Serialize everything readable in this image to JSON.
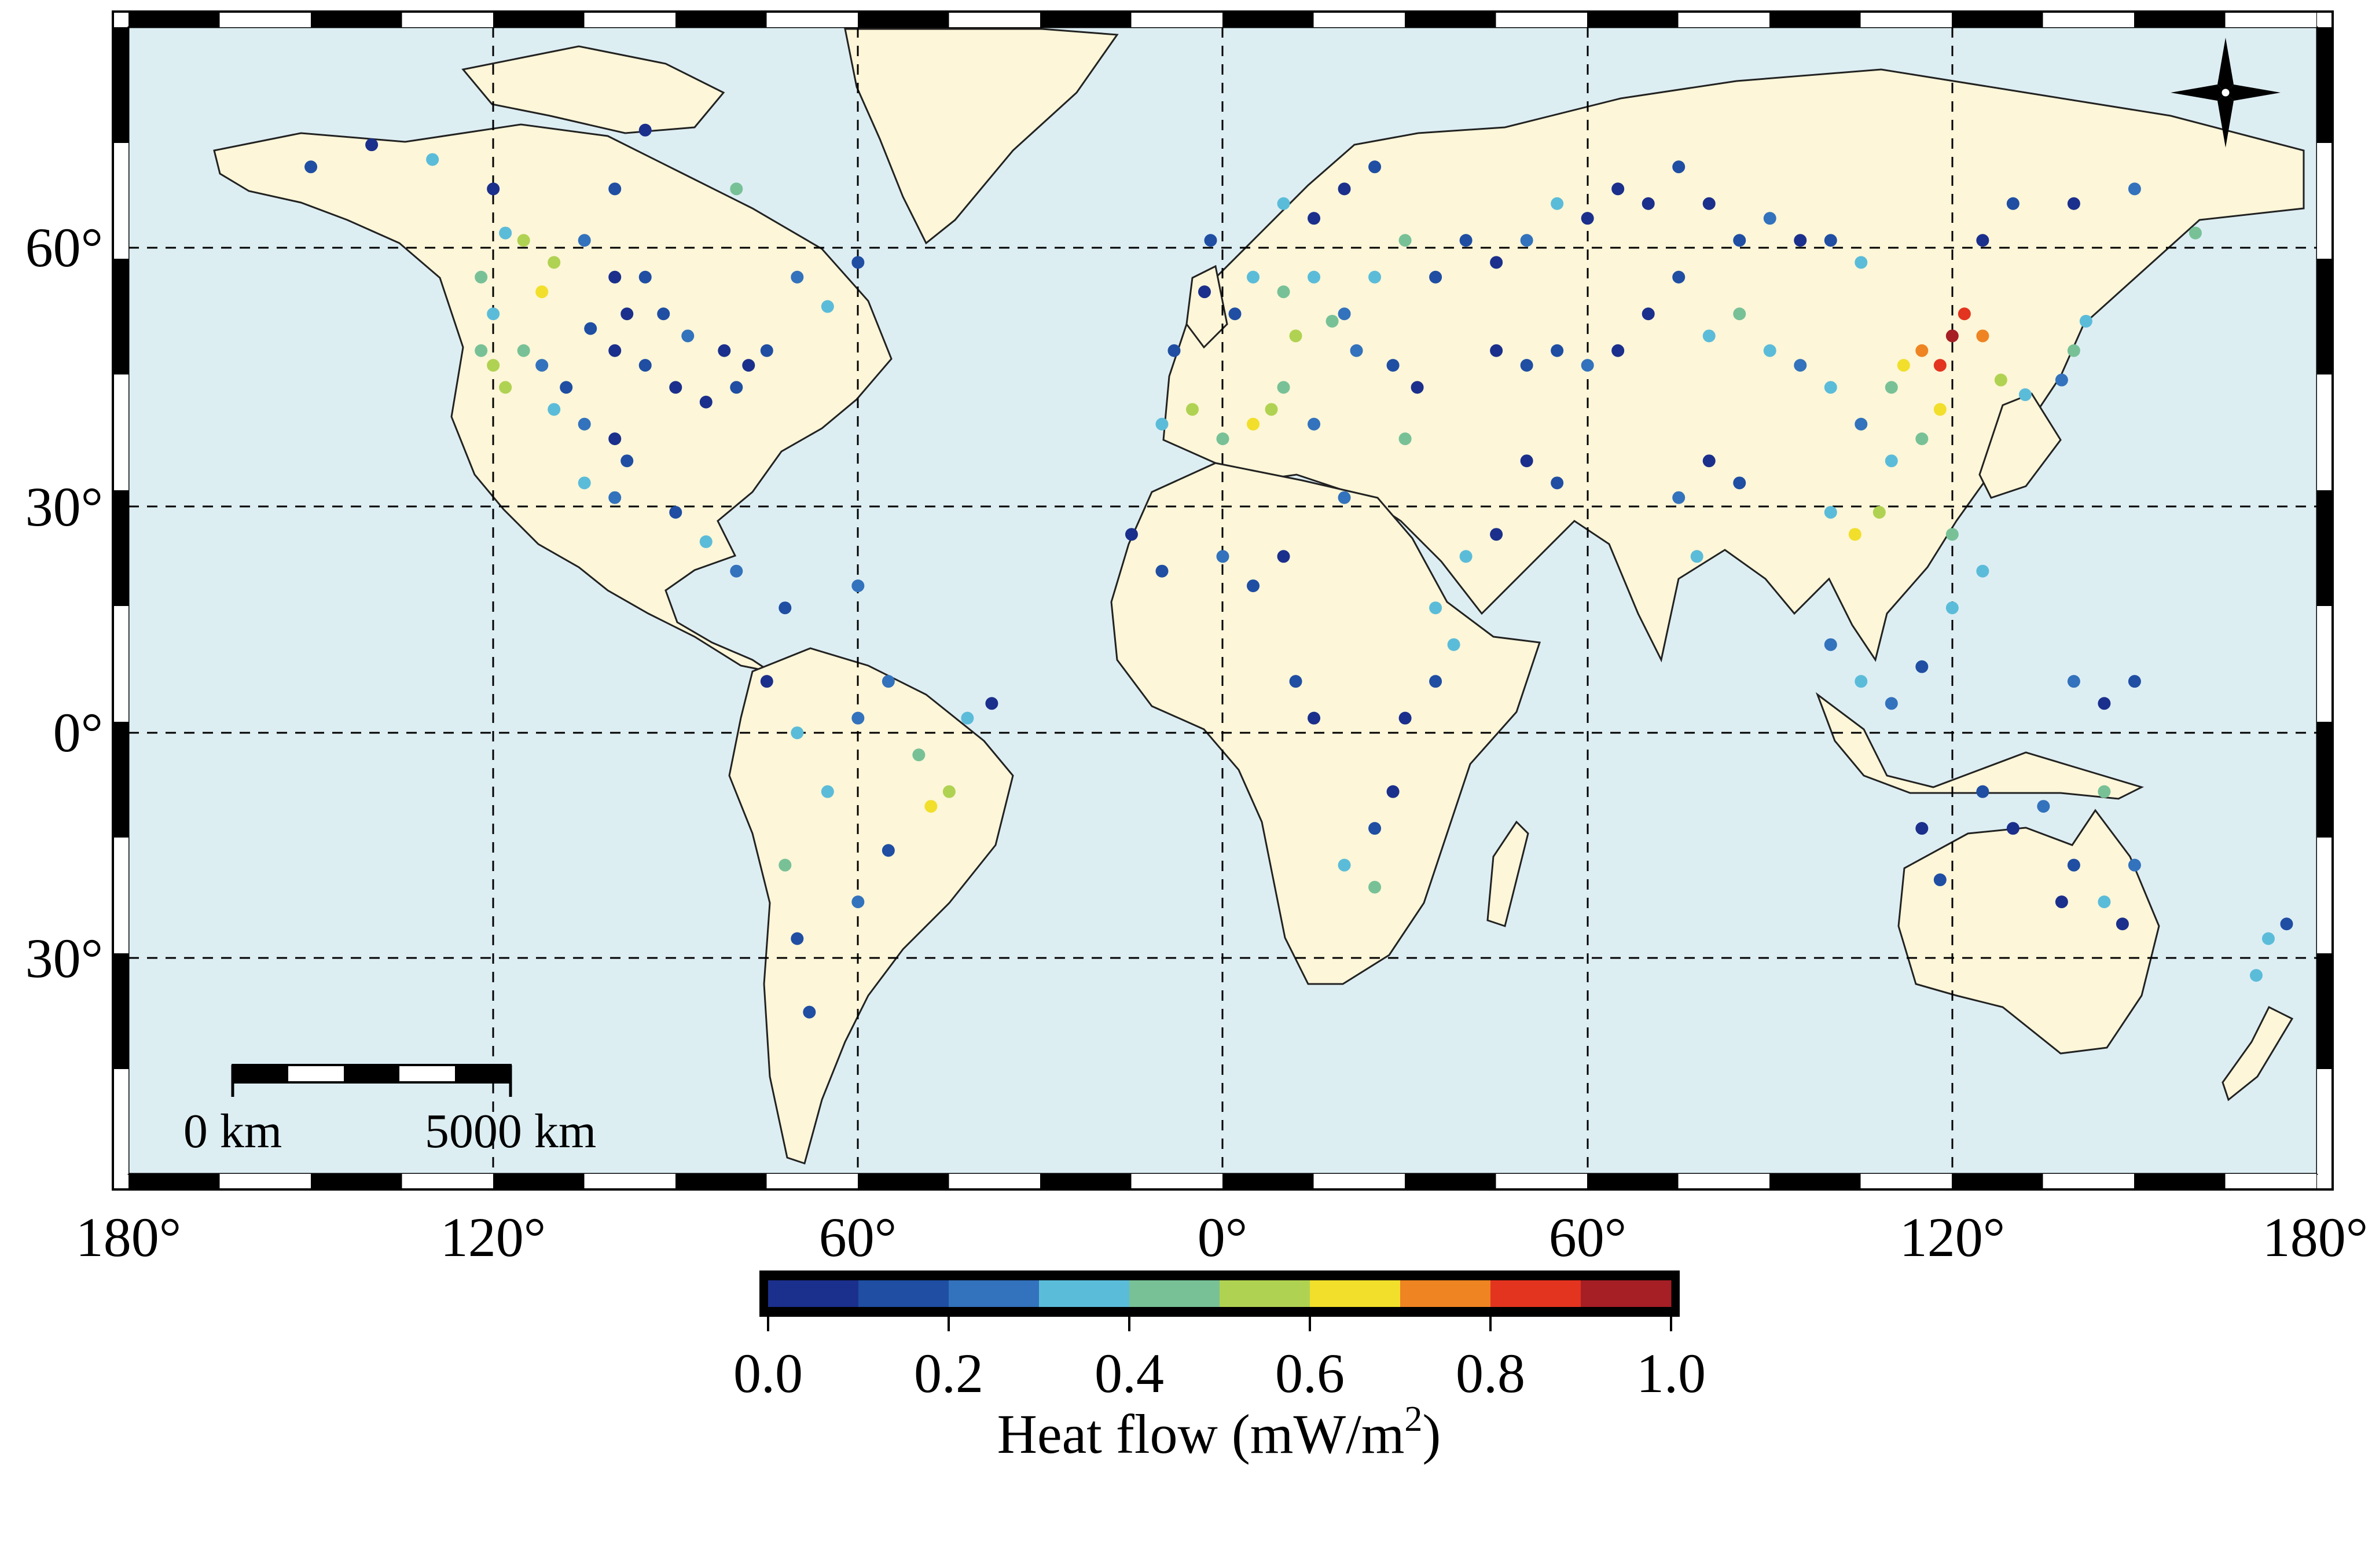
{
  "map": {
    "projection": "equirectangular",
    "ocean_color": "#ddeef3",
    "land_color": "#fdf6d8",
    "graticule": {
      "lon_labels": [
        "180°",
        "120°",
        "60°",
        "0°",
        "60°",
        "120°",
        "180°"
      ],
      "lat_labels": [
        "60°",
        "30°",
        "0°",
        "30°"
      ]
    },
    "scale_bar": {
      "label_left": "0 km",
      "label_right": "5000 km"
    },
    "north_arrow": {
      "icon": "compass-rose-icon"
    }
  },
  "colorbar": {
    "title_main": "Heat flow (mW/m",
    "title_sup": "2",
    "title_end": ")",
    "tick_labels": [
      "0.0",
      "0.2",
      "0.4",
      "0.6",
      "0.8",
      "1.0"
    ],
    "range": [
      0.0,
      1.0
    ],
    "colors": [
      "#1b2f8c",
      "#1f4ea3",
      "#3372bc",
      "#5bbcd9",
      "#78c197",
      "#b0d252",
      "#f1df2b",
      "#ee8422",
      "#e3341f",
      "#a51f25"
    ]
  },
  "chart_data": {
    "type": "scatter",
    "value_name": "heat flow",
    "lon_range": [
      -180,
      180
    ],
    "lat_range": [
      -72,
      84
    ],
    "points": [
      [
        -100,
        50,
        0.05
      ],
      [
        -95,
        50,
        0.15
      ],
      [
        -105,
        55,
        0.25
      ],
      [
        -110,
        52,
        0.5
      ],
      [
        -115,
        55,
        0.55
      ],
      [
        -112,
        48,
        0.6
      ],
      [
        -118,
        56,
        0.3
      ],
      [
        -122,
        50,
        0.45
      ],
      [
        -120,
        45,
        0.35
      ],
      [
        -115,
        40,
        0.4
      ],
      [
        -112,
        38,
        0.2
      ],
      [
        -108,
        35,
        0.1
      ],
      [
        -100,
        40,
        0.05
      ],
      [
        -95,
        38,
        0.1
      ],
      [
        -90,
        35,
        0.05
      ],
      [
        -85,
        33,
        0.05
      ],
      [
        -80,
        35,
        0.1
      ],
      [
        -78,
        38,
        0.05
      ],
      [
        -75,
        40,
        0.15
      ],
      [
        -82,
        40,
        0.05
      ],
      [
        -88,
        42,
        0.2
      ],
      [
        -92,
        45,
        0.1
      ],
      [
        -98,
        45,
        0.05
      ],
      [
        -104,
        43,
        0.1
      ],
      [
        -118,
        35,
        0.5
      ],
      [
        -120,
        38,
        0.55
      ],
      [
        -122,
        40,
        0.45
      ],
      [
        -110,
        32,
        0.3
      ],
      [
        -105,
        30,
        0.2
      ],
      [
        -100,
        28,
        0.05
      ],
      [
        -98,
        25,
        0.1
      ],
      [
        -100,
        20,
        0.2
      ],
      [
        -105,
        22,
        0.3
      ],
      [
        -90,
        18,
        0.15
      ],
      [
        -85,
        14,
        0.3
      ],
      [
        -80,
        10,
        0.2
      ],
      [
        -140,
        68,
        0.05
      ],
      [
        -150,
        65,
        0.1
      ],
      [
        -130,
        66,
        0.3
      ],
      [
        -120,
        62,
        0.05
      ],
      [
        -100,
        62,
        0.15
      ],
      [
        -95,
        70,
        0.05
      ],
      [
        -80,
        62,
        0.4
      ],
      [
        -70,
        50,
        0.2
      ],
      [
        -65,
        46,
        0.35
      ],
      [
        -60,
        52,
        0.1
      ],
      [
        -75,
        -5,
        0.05
      ],
      [
        -70,
        -12,
        0.3
      ],
      [
        -72,
        -30,
        0.4
      ],
      [
        -70,
        -40,
        0.1
      ],
      [
        -60,
        -10,
        0.2
      ],
      [
        -55,
        -5,
        0.25
      ],
      [
        -50,
        -15,
        0.4
      ],
      [
        -48,
        -22,
        0.6
      ],
      [
        -45,
        -20,
        0.5
      ],
      [
        -42,
        -10,
        0.3
      ],
      [
        -38,
        -8,
        0.05
      ],
      [
        -55,
        -28,
        0.1
      ],
      [
        -65,
        -20,
        0.35
      ],
      [
        -60,
        -35,
        0.2
      ],
      [
        -68,
        -50,
        0.15
      ],
      [
        -72,
        5,
        0.1
      ],
      [
        -60,
        8,
        0.2
      ],
      [
        -8,
        40,
        0.1
      ],
      [
        -3,
        48,
        0.05
      ],
      [
        2,
        45,
        0.1
      ],
      [
        5,
        50,
        0.3
      ],
      [
        10,
        48,
        0.4
      ],
      [
        15,
        50,
        0.3
      ],
      [
        20,
        45,
        0.2
      ],
      [
        25,
        50,
        0.35
      ],
      [
        30,
        55,
        0.4
      ],
      [
        35,
        50,
        0.1
      ],
      [
        12,
        42,
        0.5
      ],
      [
        18,
        44,
        0.4
      ],
      [
        22,
        40,
        0.2
      ],
      [
        28,
        38,
        0.15
      ],
      [
        32,
        35,
        0.05
      ],
      [
        10,
        60,
        0.3
      ],
      [
        20,
        62,
        0.05
      ],
      [
        25,
        65,
        0.1
      ],
      [
        15,
        58,
        0.05
      ],
      [
        -2,
        55,
        0.15
      ],
      [
        40,
        55,
        0.1
      ],
      [
        45,
        52,
        0.05
      ],
      [
        50,
        55,
        0.2
      ],
      [
        55,
        60,
        0.3
      ],
      [
        60,
        58,
        0.05
      ],
      [
        65,
        62,
        0.05
      ],
      [
        70,
        60,
        0.05
      ],
      [
        75,
        65,
        0.1
      ],
      [
        80,
        60,
        0.05
      ],
      [
        85,
        55,
        0.1
      ],
      [
        90,
        58,
        0.2
      ],
      [
        95,
        55,
        0.05
      ],
      [
        100,
        55,
        0.1
      ],
      [
        105,
        52,
        0.3
      ],
      [
        75,
        50,
        0.1
      ],
      [
        70,
        45,
        0.05
      ],
      [
        65,
        40,
        0.05
      ],
      [
        60,
        38,
        0.2
      ],
      [
        55,
        40,
        0.1
      ],
      [
        50,
        38,
        0.15
      ],
      [
        45,
        40,
        0.05
      ],
      [
        80,
        42,
        0.3
      ],
      [
        85,
        45,
        0.4
      ],
      [
        90,
        40,
        0.3
      ],
      [
        95,
        38,
        0.2
      ],
      [
        100,
        35,
        0.3
      ],
      [
        105,
        30,
        0.25
      ],
      [
        110,
        35,
        0.4
      ],
      [
        112,
        38,
        0.6
      ],
      [
        115,
        40,
        0.7
      ],
      [
        118,
        38,
        0.8
      ],
      [
        120,
        42,
        0.9
      ],
      [
        122,
        45,
        0.85
      ],
      [
        125,
        42,
        0.75
      ],
      [
        118,
        32,
        0.65
      ],
      [
        115,
        28,
        0.4
      ],
      [
        110,
        25,
        0.3
      ],
      [
        108,
        18,
        0.5
      ],
      [
        104,
        15,
        0.6
      ],
      [
        100,
        18,
        0.3
      ],
      [
        128,
        36,
        0.5
      ],
      [
        132,
        34,
        0.3
      ],
      [
        138,
        36,
        0.2
      ],
      [
        140,
        40,
        0.4
      ],
      [
        142,
        44,
        0.3
      ],
      [
        125,
        55,
        0.05
      ],
      [
        130,
        60,
        0.1
      ],
      [
        140,
        60,
        0.05
      ],
      [
        150,
        62,
        0.2
      ],
      [
        160,
        56,
        0.4
      ],
      [
        -10,
        30,
        0.3
      ],
      [
        -5,
        32,
        0.5
      ],
      [
        0,
        28,
        0.4
      ],
      [
        5,
        30,
        0.6
      ],
      [
        8,
        32,
        0.55
      ],
      [
        10,
        35,
        0.45
      ],
      [
        15,
        30,
        0.2
      ],
      [
        -15,
        15,
        0.05
      ],
      [
        -10,
        10,
        0.1
      ],
      [
        0,
        12,
        0.2
      ],
      [
        5,
        8,
        0.15
      ],
      [
        10,
        12,
        0.05
      ],
      [
        20,
        20,
        0.2
      ],
      [
        30,
        28,
        0.4
      ],
      [
        35,
        5,
        0.3
      ],
      [
        38,
        0,
        0.35
      ],
      [
        35,
        -5,
        0.1
      ],
      [
        30,
        -10,
        0.05
      ],
      [
        28,
        -20,
        0.05
      ],
      [
        25,
        -25,
        0.1
      ],
      [
        20,
        -30,
        0.3
      ],
      [
        25,
        -33,
        0.4
      ],
      [
        15,
        -10,
        0.05
      ],
      [
        12,
        -5,
        0.1
      ],
      [
        40,
        12,
        0.3
      ],
      [
        45,
        15,
        0.05
      ],
      [
        50,
        25,
        0.05
      ],
      [
        55,
        22,
        0.15
      ],
      [
        75,
        20,
        0.2
      ],
      [
        78,
        12,
        0.3
      ],
      [
        80,
        25,
        0.05
      ],
      [
        85,
        22,
        0.1
      ],
      [
        115,
        -25,
        0.05
      ],
      [
        118,
        -32,
        0.1
      ],
      [
        125,
        -20,
        0.15
      ],
      [
        130,
        -25,
        0.05
      ],
      [
        135,
        -22,
        0.2
      ],
      [
        140,
        -30,
        0.1
      ],
      [
        145,
        -35,
        0.3
      ],
      [
        148,
        -38,
        0.05
      ],
      [
        150,
        -30,
        0.2
      ],
      [
        145,
        -20,
        0.4
      ],
      [
        138,
        -35,
        0.05
      ],
      [
        172,
        -40,
        0.35
      ],
      [
        175,
        -38,
        0.1
      ],
      [
        170,
        -45,
        0.3
      ],
      [
        100,
        0,
        0.2
      ],
      [
        105,
        -5,
        0.3
      ],
      [
        110,
        -8,
        0.2
      ],
      [
        115,
        -3,
        0.15
      ],
      [
        120,
        5,
        0.3
      ],
      [
        125,
        10,
        0.35
      ],
      [
        120,
        15,
        0.4
      ],
      [
        140,
        -5,
        0.2
      ],
      [
        145,
        -8,
        0.05
      ],
      [
        150,
        -5,
        0.1
      ]
    ]
  }
}
